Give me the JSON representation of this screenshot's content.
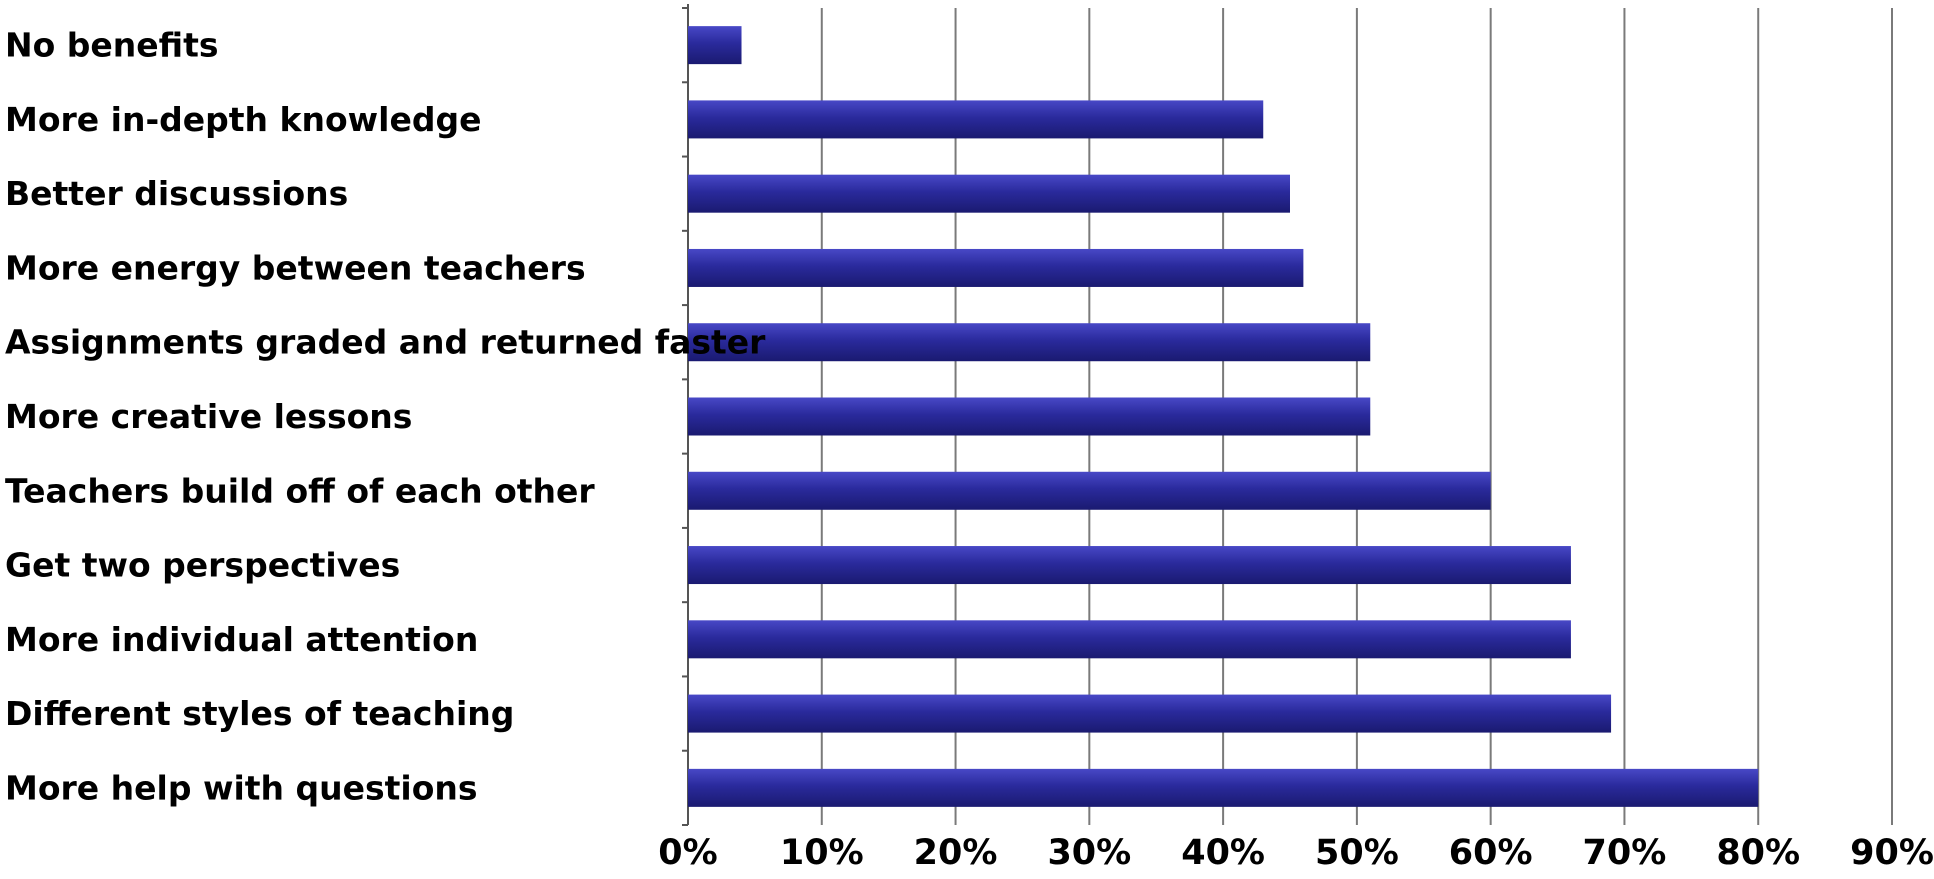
{
  "chart_data": {
    "type": "bar",
    "orientation": "horizontal",
    "categories": [
      "No benefits",
      "More in-depth knowledge",
      "Better discussions",
      "More energy between teachers",
      "Assignments graded and returned faster",
      "More creative lessons",
      "Teachers build off of each other",
      "Get two perspectives",
      "More individual attention",
      "Different styles of teaching",
      "More help with questions"
    ],
    "values": [
      4,
      43,
      45,
      46,
      51,
      51,
      60,
      66,
      66,
      69,
      80
    ],
    "x_ticks": [
      "0%",
      "10%",
      "20%",
      "30%",
      "40%",
      "50%",
      "60%",
      "70%",
      "80%",
      "90%"
    ],
    "xlim": [
      0,
      90
    ],
    "x_unit": "%",
    "grid": "vertical",
    "legend": "none",
    "bar_color": "#2b2b96",
    "grid_color": "#7a7a7a",
    "axis_color": "#555555"
  }
}
